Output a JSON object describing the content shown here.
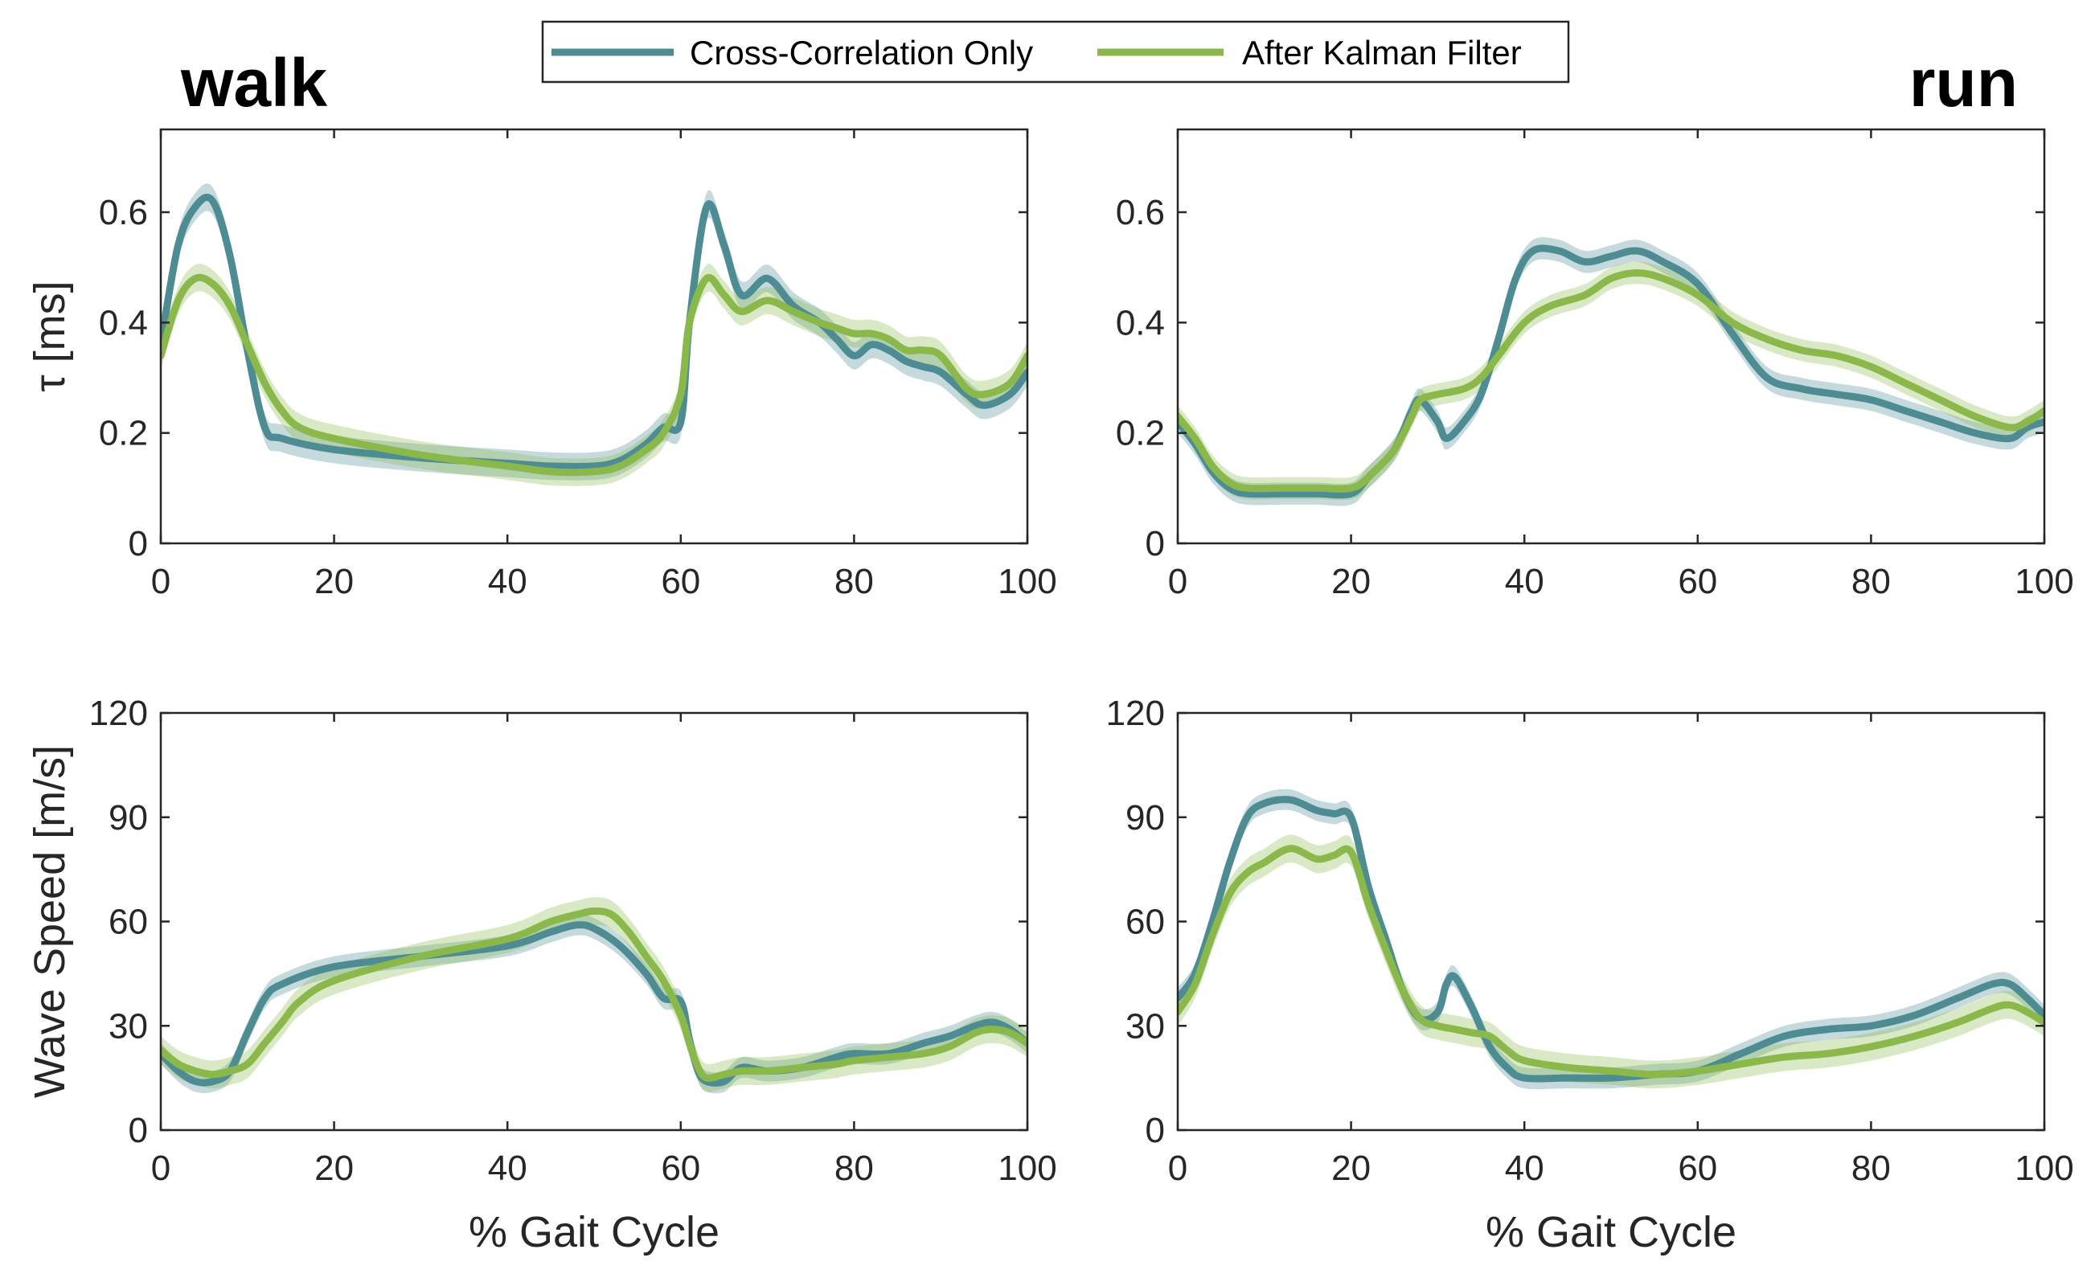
{
  "legend": {
    "entries": [
      {
        "label": "Cross-Correlation Only",
        "color": "#4e8c94"
      },
      {
        "label": "After Kalman Filter",
        "color": "#8ab84a"
      }
    ]
  },
  "chart_data": [
    {
      "type": "line",
      "condition_label": "walk",
      "xlabel": "",
      "ylabel": "τ [ms]",
      "xlim": [
        0,
        100
      ],
      "ylim": [
        0,
        0.75
      ],
      "xticks": [
        0,
        20,
        40,
        60,
        80,
        100
      ],
      "yticks": [
        0,
        0.2,
        0.4,
        0.6
      ],
      "grid": false,
      "series": [
        {
          "name": "Cross-Correlation Only",
          "color": "#4e8c94",
          "x": [
            0,
            2,
            4,
            6,
            8,
            10,
            12,
            14,
            20,
            30,
            40,
            45,
            50,
            53,
            56,
            58,
            60,
            61,
            63,
            65,
            67,
            70,
            73,
            76,
            78,
            80,
            82,
            84,
            86,
            88,
            90,
            93,
            95,
            98,
            100
          ],
          "y": [
            0.36,
            0.54,
            0.61,
            0.62,
            0.52,
            0.35,
            0.21,
            0.19,
            0.17,
            0.155,
            0.145,
            0.14,
            0.14,
            0.15,
            0.18,
            0.21,
            0.22,
            0.4,
            0.61,
            0.54,
            0.45,
            0.48,
            0.43,
            0.4,
            0.37,
            0.34,
            0.36,
            0.35,
            0.33,
            0.32,
            0.31,
            0.27,
            0.25,
            0.27,
            0.31
          ],
          "band": 0.025
        },
        {
          "name": "After Kalman Filter",
          "color": "#8ab84a",
          "x": [
            0,
            2,
            4,
            6,
            8,
            10,
            12,
            14,
            16,
            20,
            30,
            40,
            45,
            50,
            53,
            56,
            58,
            60,
            61,
            63,
            65,
            67,
            70,
            73,
            76,
            78,
            80,
            82,
            84,
            86,
            88,
            90,
            93,
            95,
            98,
            100
          ],
          "y": [
            0.34,
            0.44,
            0.48,
            0.47,
            0.43,
            0.36,
            0.29,
            0.24,
            0.21,
            0.19,
            0.16,
            0.14,
            0.13,
            0.13,
            0.14,
            0.17,
            0.2,
            0.27,
            0.4,
            0.48,
            0.45,
            0.42,
            0.44,
            0.42,
            0.4,
            0.39,
            0.38,
            0.38,
            0.37,
            0.35,
            0.35,
            0.34,
            0.28,
            0.27,
            0.29,
            0.34
          ],
          "band": 0.025
        }
      ]
    },
    {
      "type": "line",
      "condition_label": "run",
      "xlabel": "",
      "ylabel": "",
      "xlim": [
        0,
        100
      ],
      "ylim": [
        0,
        0.75
      ],
      "xticks": [
        0,
        20,
        40,
        60,
        80,
        100
      ],
      "yticks": [
        0,
        0.2,
        0.4,
        0.6
      ],
      "grid": false,
      "series": [
        {
          "name": "Cross-Correlation Only",
          "color": "#4e8c94",
          "x": [
            0,
            2,
            4,
            6,
            8,
            12,
            16,
            20,
            22,
            25,
            27,
            28,
            30,
            31,
            33,
            35,
            37,
            39,
            41,
            44,
            47,
            50,
            53,
            56,
            60,
            64,
            68,
            72,
            76,
            80,
            84,
            88,
            92,
            96,
            98,
            100
          ],
          "y": [
            0.22,
            0.18,
            0.13,
            0.1,
            0.09,
            0.09,
            0.09,
            0.09,
            0.12,
            0.17,
            0.24,
            0.26,
            0.22,
            0.19,
            0.22,
            0.27,
            0.37,
            0.48,
            0.53,
            0.53,
            0.51,
            0.52,
            0.53,
            0.51,
            0.47,
            0.38,
            0.3,
            0.28,
            0.27,
            0.26,
            0.24,
            0.22,
            0.2,
            0.19,
            0.21,
            0.22
          ],
          "band": 0.02
        },
        {
          "name": "After Kalman Filter",
          "color": "#8ab84a",
          "x": [
            0,
            2,
            4,
            6,
            8,
            12,
            16,
            20,
            22,
            25,
            27,
            28,
            30,
            33,
            35,
            37,
            40,
            43,
            47,
            50,
            53,
            56,
            60,
            64,
            68,
            72,
            76,
            80,
            84,
            88,
            92,
            96,
            98,
            100
          ],
          "y": [
            0.23,
            0.19,
            0.14,
            0.11,
            0.1,
            0.1,
            0.1,
            0.1,
            0.12,
            0.17,
            0.23,
            0.26,
            0.27,
            0.28,
            0.3,
            0.34,
            0.4,
            0.43,
            0.45,
            0.48,
            0.49,
            0.48,
            0.45,
            0.4,
            0.37,
            0.35,
            0.34,
            0.32,
            0.29,
            0.26,
            0.23,
            0.21,
            0.22,
            0.24
          ],
          "band": 0.02
        }
      ]
    },
    {
      "type": "line",
      "condition_label": "",
      "xlabel": "% Gait Cycle",
      "ylabel": "Wave Speed [m/s]",
      "xlim": [
        0,
        100
      ],
      "ylim": [
        0,
        120
      ],
      "xticks": [
        0,
        20,
        40,
        60,
        80,
        100
      ],
      "yticks": [
        0,
        30,
        60,
        90,
        120
      ],
      "grid": false,
      "series": [
        {
          "name": "Cross-Correlation Only",
          "color": "#4e8c94",
          "x": [
            0,
            2,
            4,
            6,
            8,
            10,
            12,
            14,
            20,
            30,
            40,
            45,
            48,
            50,
            53,
            56,
            58,
            60,
            61,
            62,
            63,
            65,
            67,
            70,
            74,
            78,
            80,
            84,
            88,
            91,
            94,
            96,
            98,
            100
          ],
          "y": [
            22,
            17,
            14,
            14,
            17,
            28,
            38,
            42,
            47,
            50,
            53,
            57,
            59,
            58,
            53,
            45,
            38,
            37,
            26,
            17,
            14,
            14,
            18,
            17,
            18,
            21,
            22,
            22,
            25,
            27,
            30,
            31,
            29,
            25
          ],
          "band": 3
        },
        {
          "name": "After Kalman Filter",
          "color": "#8ab84a",
          "x": [
            0,
            2,
            4,
            6,
            8,
            10,
            12,
            14,
            16,
            20,
            30,
            40,
            45,
            48,
            50,
            52,
            54,
            56,
            58,
            60,
            61,
            62,
            63,
            65,
            67,
            70,
            74,
            78,
            80,
            84,
            88,
            91,
            94,
            96,
            98,
            100
          ],
          "y": [
            23,
            19,
            17,
            16,
            17,
            19,
            25,
            31,
            37,
            43,
            50,
            55,
            60,
            62,
            63,
            62,
            57,
            50,
            43,
            33,
            25,
            18,
            15,
            16,
            17,
            17,
            18,
            19,
            20,
            21,
            22,
            24,
            28,
            29,
            28,
            25
          ],
          "band": 4
        }
      ]
    },
    {
      "type": "line",
      "condition_label": "",
      "xlabel": "% Gait Cycle",
      "ylabel": "",
      "xlim": [
        0,
        100
      ],
      "ylim": [
        0,
        120
      ],
      "xticks": [
        0,
        20,
        40,
        60,
        80,
        100
      ],
      "yticks": [
        0,
        30,
        60,
        90,
        120
      ],
      "grid": false,
      "series": [
        {
          "name": "Cross-Correlation Only",
          "color": "#4e8c94",
          "x": [
            0,
            2,
            4,
            6,
            8,
            10,
            13,
            16,
            18,
            20,
            22,
            24,
            26,
            28,
            30,
            31,
            32,
            34,
            36,
            38,
            40,
            45,
            50,
            55,
            60,
            65,
            70,
            75,
            80,
            85,
            90,
            94,
            96,
            98,
            100
          ],
          "y": [
            38,
            45,
            60,
            77,
            90,
            94,
            95,
            92,
            91,
            90,
            70,
            55,
            40,
            32,
            34,
            42,
            44,
            35,
            24,
            18,
            15,
            15,
            15,
            16,
            17,
            22,
            27,
            29,
            30,
            33,
            38,
            42,
            42,
            38,
            33
          ],
          "band": 3
        },
        {
          "name": "After Kalman Filter",
          "color": "#8ab84a",
          "x": [
            0,
            2,
            4,
            6,
            8,
            10,
            13,
            16,
            18,
            20,
            22,
            24,
            26,
            28,
            30,
            32,
            34,
            36,
            38,
            40,
            45,
            50,
            55,
            60,
            65,
            70,
            75,
            80,
            85,
            90,
            94,
            96,
            98,
            100
          ],
          "y": [
            34,
            42,
            56,
            68,
            74,
            77,
            81,
            78,
            79,
            80,
            65,
            52,
            40,
            32,
            30,
            29,
            28,
            27,
            23,
            20,
            18,
            17,
            16,
            17,
            19,
            21,
            22,
            24,
            27,
            31,
            35,
            36,
            34,
            31
          ],
          "band": 4
        }
      ]
    }
  ]
}
